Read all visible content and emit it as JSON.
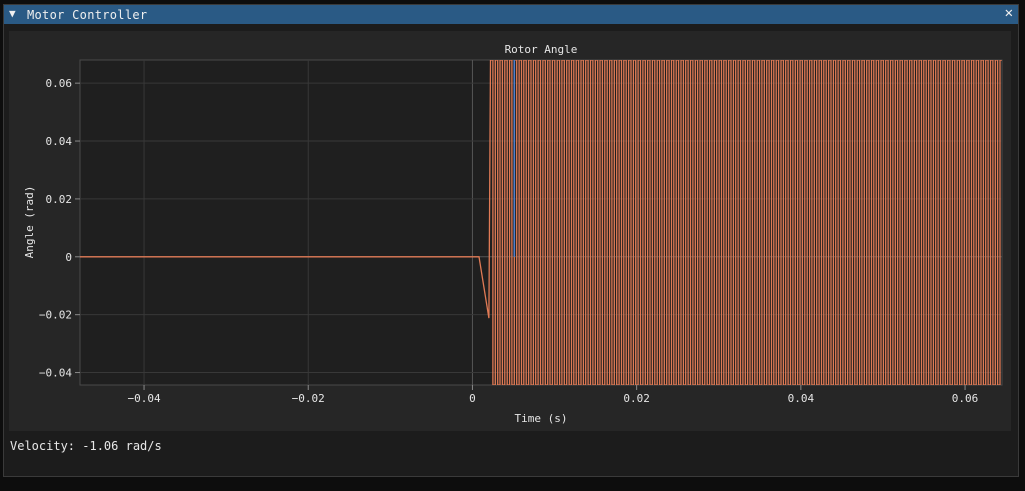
{
  "window": {
    "title": "Motor Controller",
    "collapse_icon": "▼",
    "close_icon": "✕"
  },
  "status": {
    "velocity_text": "Velocity: -1.06 rad/s"
  },
  "colors": {
    "titlebar": "#2a5a85",
    "plot_background": "#262626",
    "grid": "#3d3d3d",
    "series_orange": "#e07a55",
    "series_blue": "#4f7ecb"
  },
  "chart_data": {
    "type": "line",
    "title": "Rotor Angle",
    "xlabel": "Time (s)",
    "ylabel": "Angle (rad)",
    "xlim": [
      -0.0478,
      0.0645
    ],
    "ylim": [
      -0.0443,
      0.068
    ],
    "xticks": [
      -0.04,
      -0.02,
      0,
      0.02,
      0.04,
      0.06
    ],
    "xtick_labels": [
      "−0.04",
      "−0.02",
      "0",
      "0.02",
      "0.04",
      "0.06"
    ],
    "yticks": [
      0.06,
      0.04,
      0.02,
      0,
      -0.02,
      -0.04
    ],
    "ytick_labels": [
      "0.06",
      "0.04",
      "0.02",
      "0",
      "−0.02",
      "−0.04"
    ],
    "grid": true,
    "series": [
      {
        "color": "#e07a55",
        "x": [
          -0.0478,
          0.0,
          0.0008,
          0.002,
          0.0022
        ],
        "y": [
          0.0,
          0.0,
          0.0,
          -0.0212,
          0.068
        ],
        "oscillation": {
          "x_start": 0.0022,
          "x_end": 0.0645,
          "period": 0.00058,
          "y_low": -0.0443,
          "y_high": 0.068
        }
      },
      {
        "color": "#4f7ecb",
        "x": [
          0.0051,
          0.0051
        ],
        "y": [
          0.0,
          0.068
        ]
      }
    ]
  }
}
